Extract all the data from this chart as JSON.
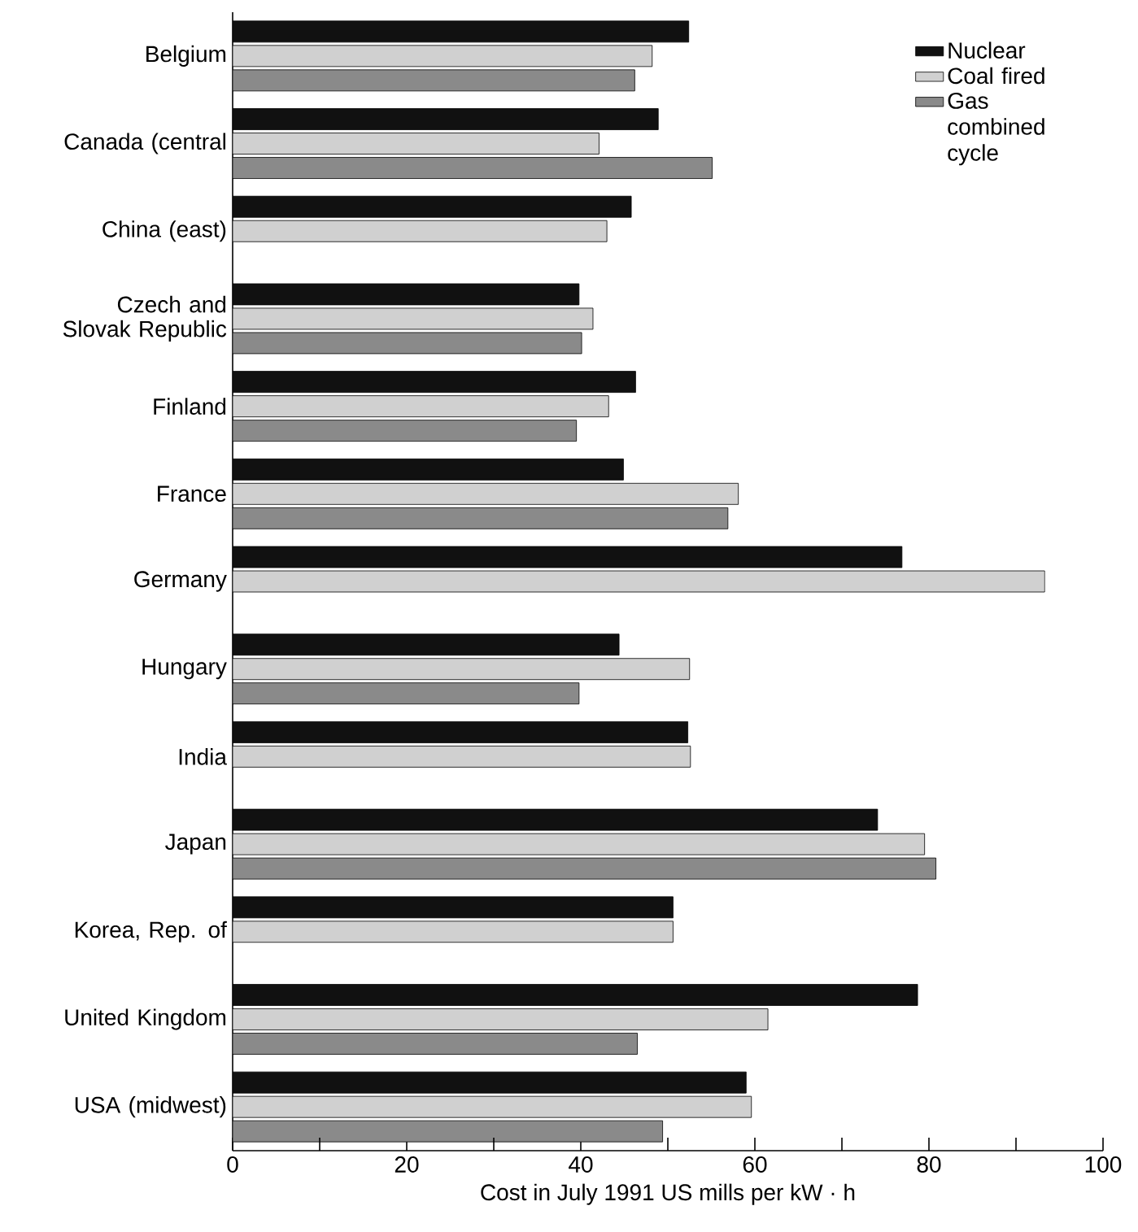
{
  "chart_data": {
    "type": "bar",
    "orientation": "horizontal",
    "categories": [
      "Belgium",
      "Canada (central",
      "China (east)",
      "Czech and Slovak Republic",
      "Finland",
      "France",
      "Germany",
      "Hungary",
      "India",
      "Japan",
      "Korea, Rep. of",
      "United Kingdom",
      "USA (midwest)"
    ],
    "series": [
      {
        "name": "Nuclear",
        "color": "#111111",
        "values": [
          52.4,
          48.9,
          45.8,
          39.8,
          46.3,
          44.9,
          76.9,
          44.4,
          52.3,
          74.1,
          50.6,
          78.7,
          59.0
        ]
      },
      {
        "name": "Coal fired",
        "color": "#d0d0d0",
        "values": [
          48.2,
          42.1,
          43.0,
          41.4,
          43.2,
          58.1,
          93.3,
          52.5,
          52.6,
          79.5,
          50.6,
          61.5,
          59.6
        ]
      },
      {
        "name": "Gas combined cycle",
        "color": "#8a8a8a",
        "values": [
          46.2,
          55.1,
          null,
          40.1,
          39.5,
          56.9,
          null,
          39.8,
          null,
          80.8,
          null,
          46.5,
          49.4
        ]
      }
    ],
    "xlim": [
      0,
      100
    ],
    "xticks": [
      0,
      {
        "value": 10,
        "label": null
      },
      20,
      {
        "value": 30,
        "label": null
      },
      40,
      {
        "value": 50,
        "label": null
      },
      60,
      {
        "value": 70,
        "label": null
      },
      80,
      {
        "value": 90,
        "label": null
      },
      100
    ],
    "xlabel": "Cost in July 1991 US mills per kW · h",
    "legend": "top right",
    "grid": false
  }
}
